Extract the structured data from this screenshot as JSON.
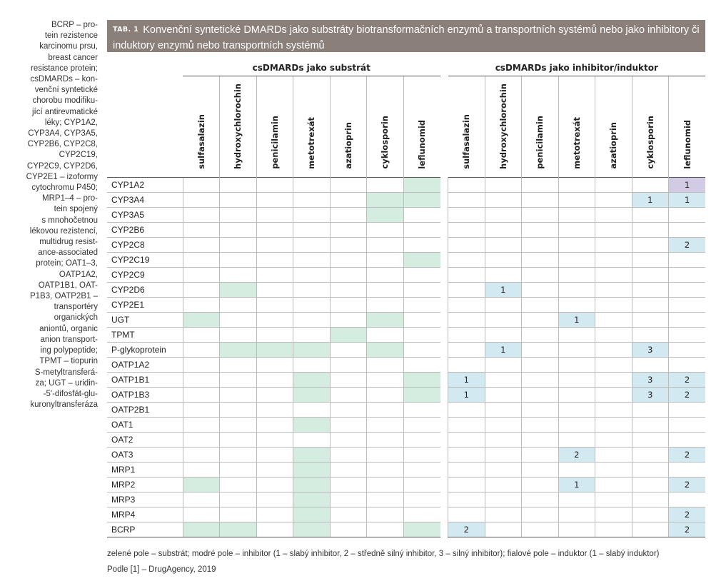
{
  "sidenote": [
    "BCRP – pro-",
    "tein rezistence",
    "karcinomu prsu,",
    "breast cancer",
    "resistance protein;",
    "csDMARDs – kon-",
    "venční syntetické",
    "chorobu modifiku-",
    "jící antirevmatické",
    "léky; CYP1A2,",
    "CYP3A4, CYP3A5,",
    "CYP2B6, CYP2C8,",
    "CYP2C19,",
    "CYP2C9, CYP2D6,",
    "CYP2E1 – izoformy",
    "cytochromu P450;",
    "MRP1–4 – pro-",
    "tein spojený",
    "s mnohočetnou",
    "lékovou rezistencí,",
    "multidrug resist-",
    "ance-associated",
    "protein; OAT1–3,",
    "OATP1A2,",
    "OATP1B1, OAT-",
    "P1B3, OATP2B1 –",
    "transportéry",
    "organických",
    "aniontů, organic",
    "anion transport-",
    "ing polypeptide;",
    "TPMT – tiopurin",
    "S-metyltransferá-",
    "za; UGT – uridin-",
    "-5'-difosfát-glu-",
    "kuronyltransferáza"
  ],
  "title": {
    "tag": "TAB. 1",
    "text": "Konvenční syntetické DMARDs jako substráty biotransformačních enzymů a transportních systémů nebo jako inhibitory či induktory enzymů nebo transportních systémů"
  },
  "groups": [
    "csDMARDs jako substrát",
    "csDMARDs jako inhibitor/induktor"
  ],
  "drugs": [
    "sulfasalazin",
    "hydroxychlorochin",
    "penicilamin",
    "metotrexát",
    "azatioprin",
    "cyklosporin",
    "leflunomid"
  ],
  "rows": [
    {
      "label": "CYP1A2",
      "sub": [
        0,
        0,
        0,
        0,
        0,
        0,
        1
      ],
      "inh": [
        0,
        0,
        0,
        0,
        0,
        0,
        "d1"
      ]
    },
    {
      "label": "CYP3A4",
      "sub": [
        0,
        0,
        0,
        0,
        0,
        1,
        1
      ],
      "inh": [
        0,
        0,
        0,
        0,
        0,
        "1",
        "1"
      ]
    },
    {
      "label": "CYP3A5",
      "sub": [
        0,
        0,
        0,
        0,
        0,
        1,
        0
      ],
      "inh": [
        0,
        0,
        0,
        0,
        0,
        0,
        0
      ]
    },
    {
      "label": "CYP2B6",
      "sub": [
        0,
        0,
        0,
        0,
        0,
        0,
        0
      ],
      "inh": [
        0,
        0,
        0,
        0,
        0,
        0,
        0
      ]
    },
    {
      "label": "CYP2C8",
      "sub": [
        0,
        0,
        0,
        0,
        0,
        0,
        0
      ],
      "inh": [
        0,
        0,
        0,
        0,
        0,
        0,
        "2"
      ]
    },
    {
      "label": "CYP2C19",
      "sub": [
        0,
        0,
        0,
        0,
        0,
        0,
        1
      ],
      "inh": [
        0,
        0,
        0,
        0,
        0,
        0,
        0
      ]
    },
    {
      "label": "CYP2C9",
      "sub": [
        0,
        0,
        0,
        0,
        0,
        0,
        0
      ],
      "inh": [
        0,
        0,
        0,
        0,
        0,
        0,
        0
      ]
    },
    {
      "label": "CYP2D6",
      "sub": [
        0,
        1,
        0,
        0,
        0,
        0,
        0
      ],
      "inh": [
        0,
        "1",
        0,
        0,
        0,
        0,
        0
      ]
    },
    {
      "label": "CYP2E1",
      "sub": [
        0,
        0,
        0,
        0,
        0,
        0,
        0
      ],
      "inh": [
        0,
        0,
        0,
        0,
        0,
        0,
        0
      ]
    },
    {
      "label": "UGT",
      "sub": [
        1,
        0,
        0,
        0,
        0,
        1,
        0
      ],
      "inh": [
        0,
        0,
        0,
        "1",
        0,
        0,
        0
      ]
    },
    {
      "label": "TPMT",
      "sub": [
        0,
        0,
        0,
        0,
        1,
        0,
        0
      ],
      "inh": [
        0,
        0,
        0,
        0,
        0,
        0,
        0
      ]
    },
    {
      "label": "P-glykoprotein",
      "sub": [
        0,
        1,
        1,
        1,
        0,
        1,
        0
      ],
      "inh": [
        0,
        "1",
        0,
        0,
        0,
        "3",
        0
      ]
    },
    {
      "label": "OATP1A2",
      "sub": [
        0,
        0,
        0,
        0,
        0,
        0,
        0
      ],
      "inh": [
        0,
        0,
        0,
        0,
        0,
        0,
        0
      ]
    },
    {
      "label": "OATP1B1",
      "sub": [
        0,
        0,
        0,
        1,
        0,
        0,
        1
      ],
      "inh": [
        "1",
        0,
        0,
        0,
        0,
        "3",
        "2"
      ]
    },
    {
      "label": "OATP1B3",
      "sub": [
        0,
        0,
        0,
        1,
        0,
        0,
        1
      ],
      "inh": [
        "1",
        0,
        0,
        0,
        0,
        "3",
        "2"
      ]
    },
    {
      "label": "OATP2B1",
      "sub": [
        0,
        0,
        0,
        0,
        0,
        0,
        0
      ],
      "inh": [
        0,
        0,
        0,
        0,
        0,
        0,
        0
      ]
    },
    {
      "label": "OAT1",
      "sub": [
        0,
        0,
        0,
        1,
        0,
        0,
        0
      ],
      "inh": [
        0,
        0,
        0,
        0,
        0,
        0,
        0
      ]
    },
    {
      "label": "OAT2",
      "sub": [
        0,
        0,
        0,
        0,
        0,
        0,
        0
      ],
      "inh": [
        0,
        0,
        0,
        0,
        0,
        0,
        0
      ]
    },
    {
      "label": "OAT3",
      "sub": [
        0,
        0,
        0,
        1,
        0,
        0,
        0
      ],
      "inh": [
        0,
        0,
        0,
        "2",
        0,
        0,
        "2"
      ]
    },
    {
      "label": "MRP1",
      "sub": [
        0,
        0,
        0,
        1,
        0,
        0,
        0
      ],
      "inh": [
        0,
        0,
        0,
        0,
        0,
        0,
        0
      ]
    },
    {
      "label": "MRP2",
      "sub": [
        1,
        0,
        0,
        1,
        0,
        0,
        0
      ],
      "inh": [
        0,
        0,
        0,
        "1",
        0,
        0,
        "2"
      ]
    },
    {
      "label": "MRP3",
      "sub": [
        0,
        0,
        0,
        1,
        0,
        0,
        0
      ],
      "inh": [
        0,
        0,
        0,
        0,
        0,
        0,
        0
      ]
    },
    {
      "label": "MRP4",
      "sub": [
        0,
        0,
        0,
        1,
        0,
        0,
        0
      ],
      "inh": [
        0,
        0,
        0,
        0,
        0,
        0,
        "2"
      ]
    },
    {
      "label": "BCRP",
      "sub": [
        1,
        1,
        0,
        1,
        0,
        0,
        1
      ],
      "inh": [
        "2",
        0,
        0,
        0,
        0,
        0,
        "2"
      ]
    }
  ],
  "colors": {
    "substrate": "#d5ece1",
    "inhibitor": "#d2e9f1",
    "inductor": "#d1cbe5",
    "title_bg": "#8b7f7a"
  },
  "footnote": "zelené pole – substrát; modré pole – inhibitor (1 – slabý inhibitor, 2 – středně silný inhibitor, 3 – silný inhibitor); fialové pole – induktor (1 – slabý induktor)",
  "source": "Podle [1] – DrugAgency, 2019"
}
